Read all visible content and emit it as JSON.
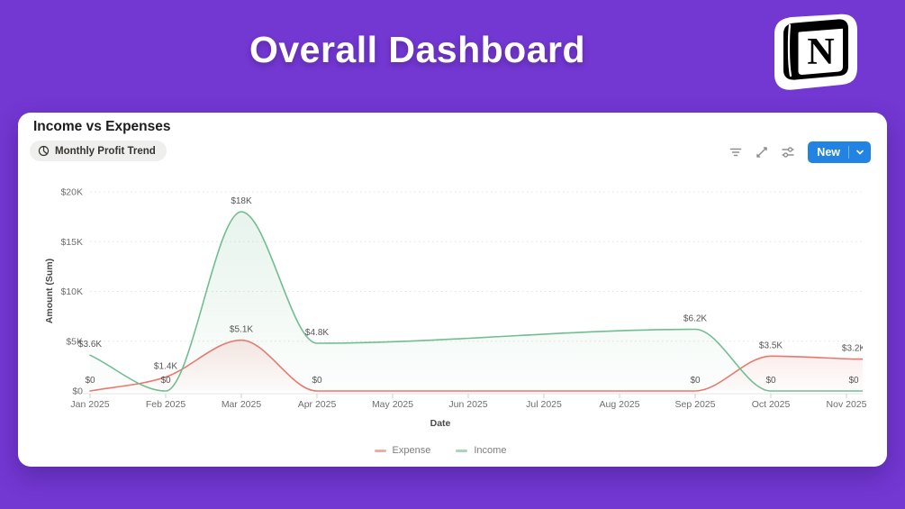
{
  "header": {
    "title": "Overall Dashboard",
    "logo": "notion-logo"
  },
  "card": {
    "title": "Income vs Expenses",
    "view_tab": "Monthly Profit Trend",
    "new_button_label": "New",
    "toolbar_icons": [
      "filter-icon",
      "expand-arrows-icon",
      "sliders-icon"
    ]
  },
  "colors": {
    "background": "#7337D2",
    "card": "#FFFFFF",
    "accent_blue": "#2383E2",
    "expense": "#E8786E",
    "income": "#72BD92"
  },
  "chart_data": {
    "type": "line",
    "title": "Income vs Expenses",
    "xlabel": "Date",
    "ylabel": "Amount (Sum)",
    "ylim": [
      0,
      20000
    ],
    "grid": "dotted-horizontal",
    "legend_position": "bottom",
    "categories": [
      "Jan 2025",
      "Feb 2025",
      "Mar 2025",
      "Apr 2025",
      "May 2025",
      "Jun 2025",
      "Jul 2025",
      "Aug 2025",
      "Sep 2025",
      "Oct 2025",
      "Nov 2025"
    ],
    "y_ticks": [
      {
        "value": 0,
        "label": "$0"
      },
      {
        "value": 5000,
        "label": "$5K"
      },
      {
        "value": 10000,
        "label": "$10K"
      },
      {
        "value": 15000,
        "label": "$15K"
      },
      {
        "value": 20000,
        "label": "$20K"
      }
    ],
    "series": [
      {
        "name": "Expense",
        "color": "#E8786E",
        "points": [
          {
            "month": "Jan 2025",
            "value": 0,
            "label": "$0"
          },
          {
            "month": "Feb 2025",
            "value": 1400,
            "label": "$1.4K"
          },
          {
            "month": "Mar 2025",
            "value": 5100,
            "label": "$5.1K"
          },
          {
            "month": "Apr 2025",
            "value": 0,
            "label": "$0"
          },
          {
            "month": "Sep 2025",
            "value": 0,
            "label": "$0"
          },
          {
            "month": "Oct 2025",
            "value": 3500,
            "label": "$3.5K"
          },
          {
            "month": "Nov 2025",
            "value": 3200,
            "label": "$3.2K"
          }
        ]
      },
      {
        "name": "Income",
        "color": "#72BD92",
        "points": [
          {
            "month": "Jan 2025",
            "value": 3600,
            "label": "$3.6K"
          },
          {
            "month": "Feb 2025",
            "value": 0,
            "label": "$0"
          },
          {
            "month": "Mar 2025",
            "value": 18000,
            "label": "$18K"
          },
          {
            "month": "Apr 2025",
            "value": 4800,
            "label": "$4.8K"
          },
          {
            "month": "Sep 2025",
            "value": 6200,
            "label": "$6.2K"
          },
          {
            "month": "Oct 2025",
            "value": 0,
            "label": "$0"
          },
          {
            "month": "Nov 2025",
            "value": 0,
            "label": "$0"
          }
        ]
      }
    ]
  }
}
